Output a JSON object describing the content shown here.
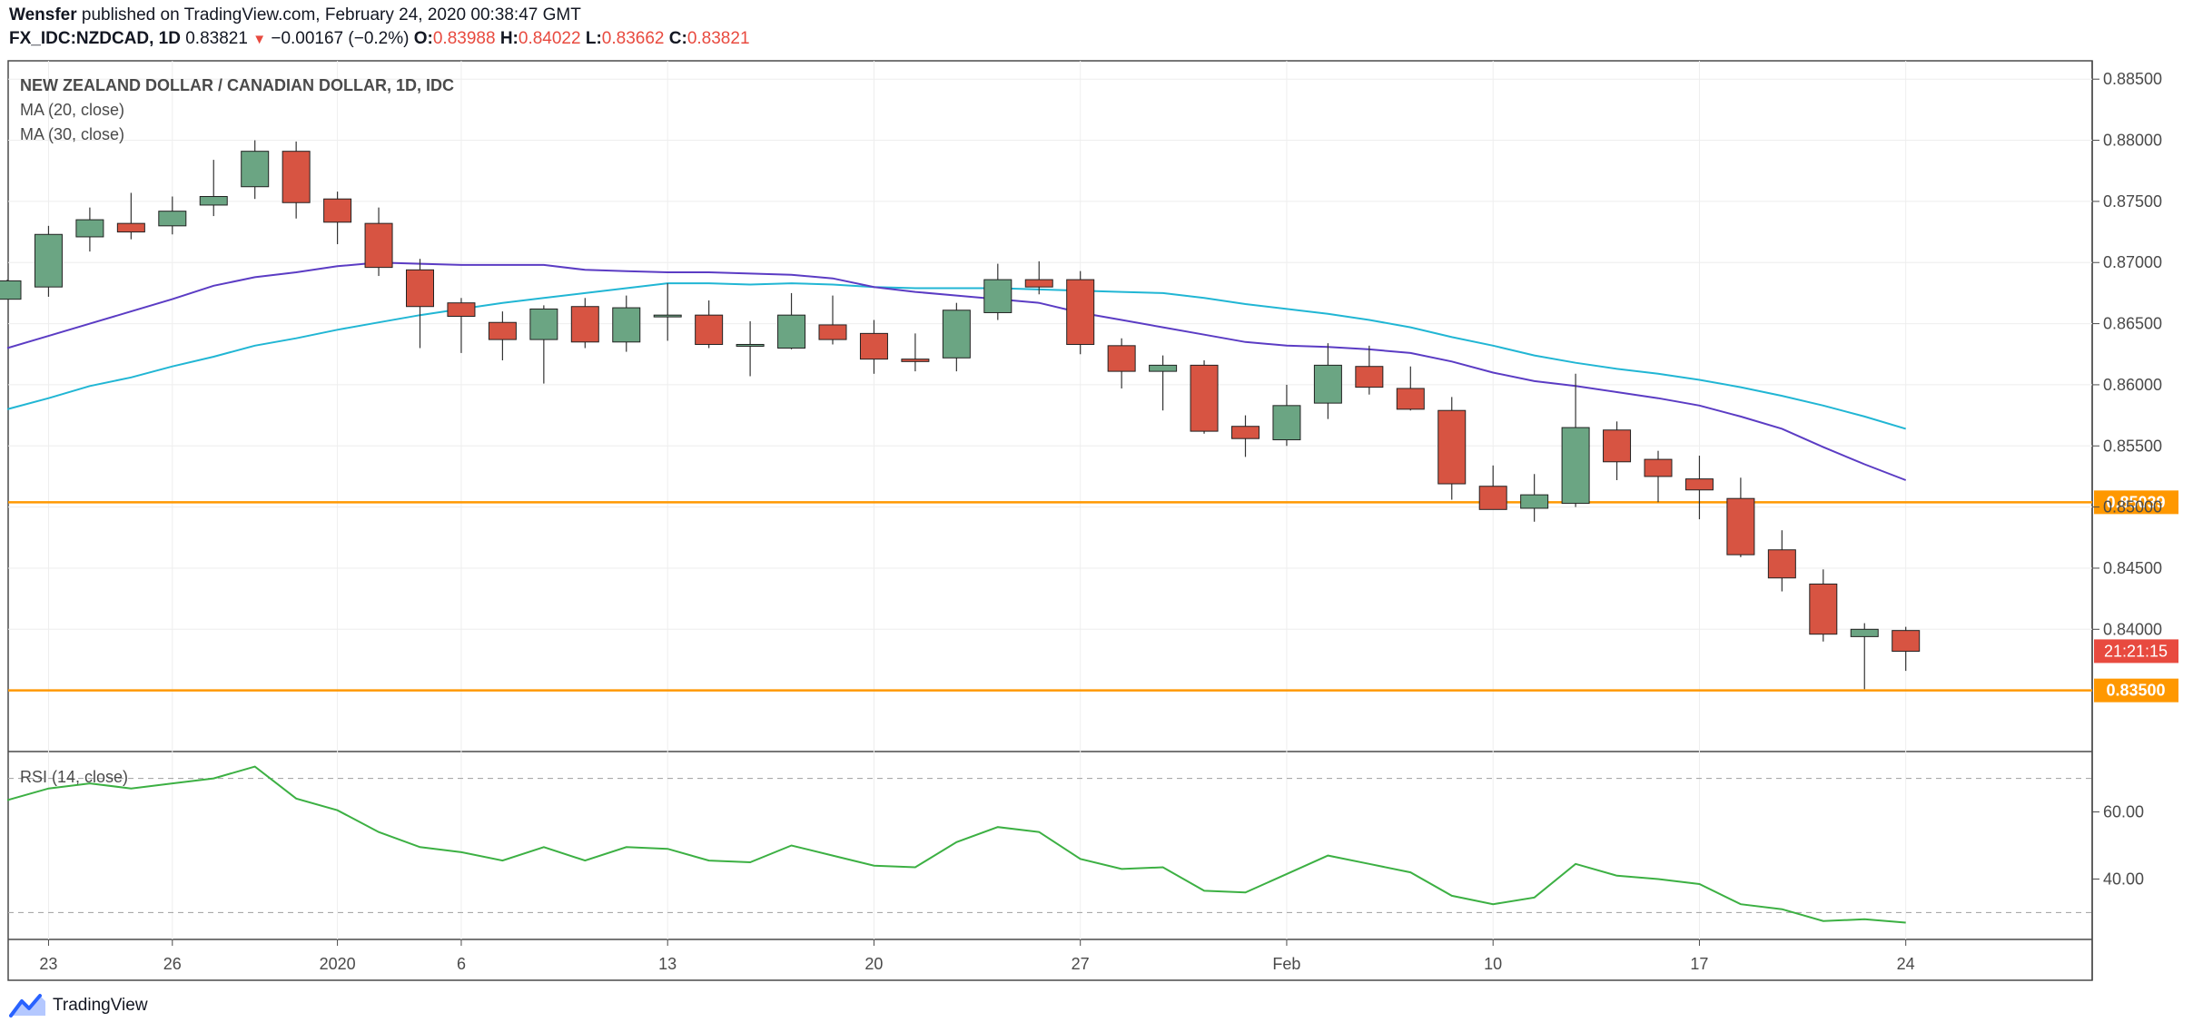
{
  "header": {
    "author": "Wensfer",
    "published_text": " published on TradingView.com, February 24, 2020 00:38:47 GMT",
    "symbol": "FX_IDC:NZDCAD, 1D",
    "last": "0.83821",
    "change_arrow": "▼",
    "change": "−0.00167 (−0.2%)",
    "o_label": "O:",
    "o_value": "0.83988",
    "h_label": "H:",
    "h_value": "0.84022",
    "l_label": "L:",
    "l_value": "0.83662",
    "c_label": "C:",
    "c_value": "0.83821"
  },
  "legend": {
    "title": "NEW ZEALAND DOLLAR / CANADIAN DOLLAR, 1D, IDC",
    "ma20": "MA (20, close)",
    "ma30": "MA (30, close)",
    "rsi": "RSI (14, close)"
  },
  "footer": {
    "brand": "TradingView",
    "logo_icon": "tradingview-logo-icon"
  },
  "colors": {
    "up": "#6ba583",
    "down": "#d75442",
    "ma20": "#5b3cc4",
    "ma30": "#21b6d4",
    "rsi": "#3cb043",
    "level": "#ff9800",
    "timer": "#e84a3f"
  },
  "chart_data": [
    {
      "type": "candlestick",
      "title": "NEW ZEALAND DOLLAR / CANADIAN DOLLAR, 1D, IDC",
      "ylim": [
        0.83,
        0.8865
      ],
      "y_ticks": [
        "0.88500",
        "0.88000",
        "0.87500",
        "0.87000",
        "0.86500",
        "0.86000",
        "0.85500",
        "0.85000",
        "0.84500",
        "0.84000"
      ],
      "x_tick_labels": [
        {
          "label": "23",
          "index": 1
        },
        {
          "label": "26",
          "index": 4
        },
        {
          "label": "2020",
          "index": 8
        },
        {
          "label": "6",
          "index": 11
        },
        {
          "label": "13",
          "index": 16
        },
        {
          "label": "20",
          "index": 21
        },
        {
          "label": "27",
          "index": 26
        },
        {
          "label": "Feb",
          "index": 31
        },
        {
          "label": "10",
          "index": 36
        },
        {
          "label": "17",
          "index": 41
        },
        {
          "label": "24",
          "index": 46
        }
      ],
      "candles": [
        [
          0.867,
          0.8686,
          0.867,
          0.8685
        ],
        [
          0.868,
          0.873,
          0.8672,
          0.8723
        ],
        [
          0.8721,
          0.8745,
          0.8709,
          0.8735
        ],
        [
          0.8732,
          0.8757,
          0.8719,
          0.8725
        ],
        [
          0.873,
          0.8754,
          0.8723,
          0.8742
        ],
        [
          0.8747,
          0.8784,
          0.8738,
          0.8754
        ],
        [
          0.8762,
          0.88,
          0.8752,
          0.8791
        ],
        [
          0.8791,
          0.8799,
          0.8736,
          0.8749
        ],
        [
          0.8752,
          0.8758,
          0.8715,
          0.8733
        ],
        [
          0.8732,
          0.8745,
          0.8689,
          0.8696
        ],
        [
          0.8694,
          0.8703,
          0.863,
          0.8664
        ],
        [
          0.8667,
          0.8671,
          0.8626,
          0.8656
        ],
        [
          0.8651,
          0.866,
          0.862,
          0.8637
        ],
        [
          0.8637,
          0.8665,
          0.8601,
          0.8662
        ],
        [
          0.8664,
          0.8671,
          0.863,
          0.8635
        ],
        [
          0.8635,
          0.8673,
          0.8627,
          0.8663
        ],
        [
          0.8656,
          0.8683,
          0.8636,
          0.8657
        ],
        [
          0.8657,
          0.8669,
          0.863,
          0.8633
        ],
        [
          0.8632,
          0.8652,
          0.8607,
          0.8633
        ],
        [
          0.863,
          0.8675,
          0.8629,
          0.8657
        ],
        [
          0.8649,
          0.8673,
          0.8633,
          0.8637
        ],
        [
          0.8642,
          0.8653,
          0.8609,
          0.8621
        ],
        [
          0.8621,
          0.8642,
          0.8611,
          0.8619
        ],
        [
          0.8622,
          0.8667,
          0.8611,
          0.8661
        ],
        [
          0.8659,
          0.8699,
          0.8653,
          0.8686
        ],
        [
          0.8686,
          0.8701,
          0.8674,
          0.868
        ],
        [
          0.8686,
          0.8693,
          0.8625,
          0.8633
        ],
        [
          0.8632,
          0.8638,
          0.8597,
          0.8611
        ],
        [
          0.8611,
          0.8624,
          0.8579,
          0.8616
        ],
        [
          0.8616,
          0.862,
          0.856,
          0.8562
        ],
        [
          0.8566,
          0.8575,
          0.8541,
          0.8556
        ],
        [
          0.8555,
          0.86,
          0.855,
          0.8583
        ],
        [
          0.8585,
          0.8634,
          0.8572,
          0.8616
        ],
        [
          0.8615,
          0.8632,
          0.8592,
          0.8598
        ],
        [
          0.8597,
          0.8615,
          0.8579,
          0.858
        ],
        [
          0.8579,
          0.859,
          0.8506,
          0.8519
        ],
        [
          0.8517,
          0.8534,
          0.8498,
          0.8498
        ],
        [
          0.8499,
          0.8527,
          0.8488,
          0.851
        ],
        [
          0.8503,
          0.8609,
          0.85,
          0.8565
        ],
        [
          0.8563,
          0.857,
          0.8522,
          0.8537
        ],
        [
          0.8539,
          0.8546,
          0.8504,
          0.8525
        ],
        [
          0.8523,
          0.8542,
          0.849,
          0.8514
        ],
        [
          0.8507,
          0.8524,
          0.8459,
          0.8461
        ],
        [
          0.8465,
          0.8481,
          0.8431,
          0.8442
        ],
        [
          0.8437,
          0.8449,
          0.839,
          0.8396
        ],
        [
          0.8394,
          0.8405,
          0.8351,
          0.84
        ],
        [
          0.8399,
          0.8402,
          0.8366,
          0.8382
        ]
      ],
      "ma20": [
        0.863,
        0.864,
        0.865,
        0.866,
        0.867,
        0.8681,
        0.8688,
        0.8692,
        0.8697,
        0.87,
        0.8699,
        0.8698,
        0.8698,
        0.8698,
        0.8694,
        0.8693,
        0.8692,
        0.8692,
        0.8691,
        0.869,
        0.8687,
        0.868,
        0.8676,
        0.8673,
        0.867,
        0.8667,
        0.8659,
        0.8653,
        0.8647,
        0.8641,
        0.8635,
        0.8632,
        0.8631,
        0.8629,
        0.8626,
        0.8619,
        0.861,
        0.8603,
        0.8599,
        0.8594,
        0.8589,
        0.8583,
        0.8574,
        0.8564,
        0.8549,
        0.8535,
        0.8522
      ],
      "ma30": [
        0.858,
        0.8589,
        0.8599,
        0.8606,
        0.8615,
        0.8623,
        0.8632,
        0.8638,
        0.8645,
        0.8651,
        0.8657,
        0.8662,
        0.8667,
        0.8671,
        0.8675,
        0.8679,
        0.8683,
        0.8683,
        0.8682,
        0.8683,
        0.8682,
        0.868,
        0.8679,
        0.8679,
        0.8679,
        0.8678,
        0.8677,
        0.8676,
        0.8675,
        0.8671,
        0.8666,
        0.8662,
        0.8658,
        0.8653,
        0.8647,
        0.8639,
        0.8632,
        0.8624,
        0.8618,
        0.8613,
        0.8609,
        0.8604,
        0.8598,
        0.8591,
        0.8583,
        0.8574,
        0.8564
      ],
      "horizontal_levels": [
        {
          "value": 0.85039,
          "label": "0.85039"
        },
        {
          "value": 0.835,
          "label": "0.83500"
        }
      ],
      "last_price": 0.83821,
      "timer_label": "21:21:15"
    },
    {
      "type": "line",
      "title": "RSI (14, close)",
      "ylim": [
        22,
        78
      ],
      "y_ticks": [
        "60.00",
        "40.00"
      ],
      "bands": [
        70,
        30
      ],
      "values": [
        63.5,
        67,
        68.5,
        67,
        68.5,
        70,
        73.5,
        64,
        60.5,
        54,
        49.5,
        48,
        45.5,
        49.5,
        45.5,
        49.5,
        49,
        45.5,
        45,
        50,
        47,
        44,
        43.5,
        51,
        55.5,
        54,
        46,
        43,
        43.5,
        36.5,
        36,
        41.5,
        47,
        44.5,
        42,
        35,
        32.5,
        34.5,
        44.5,
        41,
        40,
        38.5,
        32.5,
        31,
        27.5,
        28,
        27
      ]
    }
  ]
}
